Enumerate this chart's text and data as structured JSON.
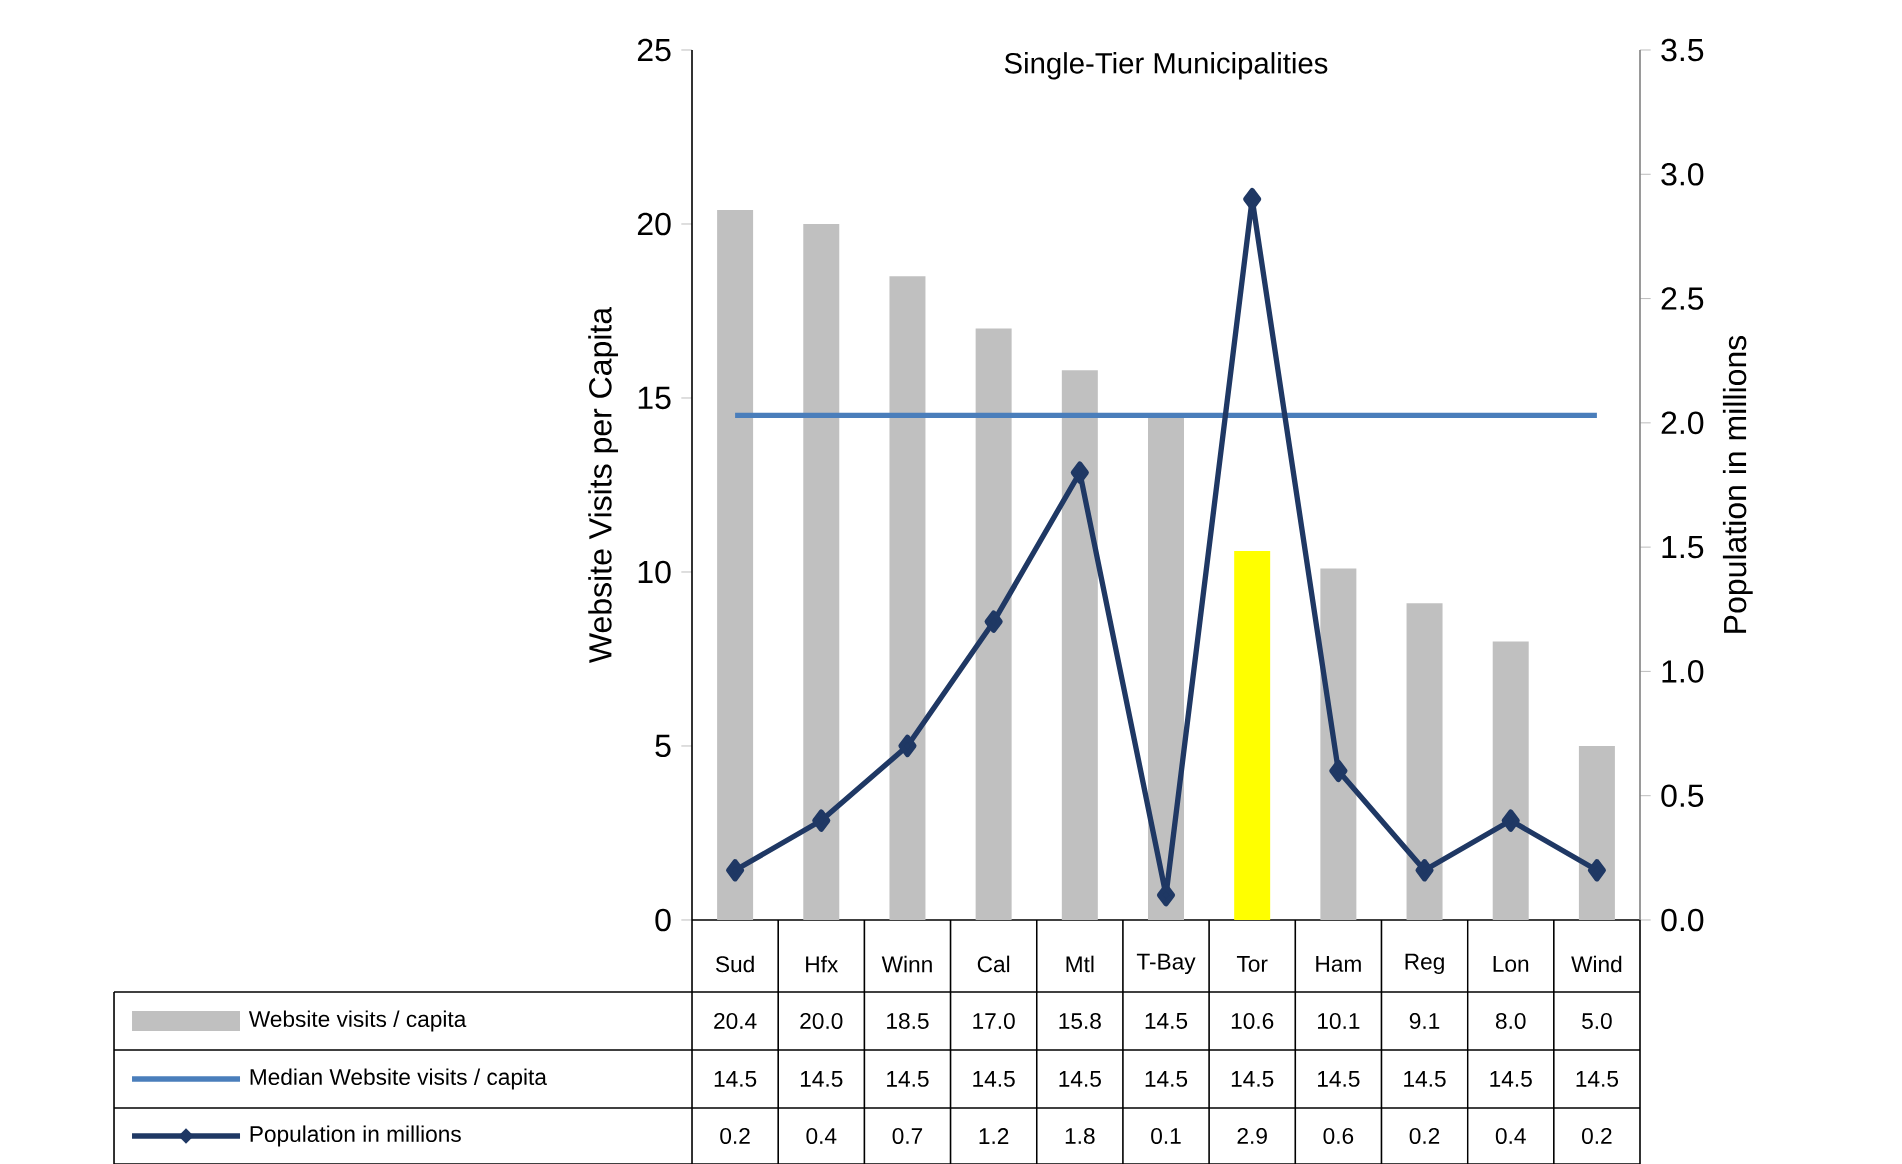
{
  "chart_data": {
    "type": "bar",
    "title": "Single-Tier Municipalities",
    "ylabel": "Website Visits per Capita",
    "y2label": "Population in millions",
    "categories": [
      "Sud",
      "Hfx",
      "Winn",
      "Cal",
      "Mtl",
      "T-Bay",
      "Tor",
      "Ham",
      "Reg",
      "Lon",
      "Wind"
    ],
    "ylim": [
      0,
      25
    ],
    "yticks": [
      0,
      5,
      10,
      15,
      20,
      25
    ],
    "y2lim": [
      0,
      3.5
    ],
    "y2ticks": [
      {
        "value": 0,
        "label": "0.0"
      },
      {
        "value": 0.5,
        "label": "0.5"
      },
      {
        "value": 1,
        "label": "1.0"
      },
      {
        "value": 1.5,
        "label": "1.5"
      },
      {
        "value": 2,
        "label": "2.0"
      },
      {
        "value": 2.5,
        "label": "2.5"
      },
      {
        "value": 3,
        "label": "3.0"
      },
      {
        "value": 3.5,
        "label": "3.5"
      }
    ],
    "legend": "bottom",
    "series": [
      {
        "name": "Website visits / capita",
        "colors": [
          "#c0c0c0",
          "#c0c0c0",
          "#c0c0c0",
          "#c0c0c0",
          "#c0c0c0",
          "#c0c0c0",
          "#ffff00",
          "#c0c0c0",
          "#c0c0c0",
          "#c0c0c0",
          "#c0c0c0"
        ],
        "values": [
          20.4,
          20.0,
          18.5,
          17.0,
          15.8,
          14.5,
          10.6,
          10.1,
          9.1,
          8.0,
          5.0
        ],
        "value_labels": [
          "20.4",
          "20.0",
          "18.5",
          "17.0",
          "15.8",
          "14.5",
          "10.6",
          "10.1",
          "9.1",
          "8.0",
          "5.0"
        ]
      },
      {
        "name": "Median Website visits / capita",
        "type": "line",
        "color": "#4a7ebb",
        "marker": "none",
        "line_style": "solid",
        "values": [
          14.5,
          14.5,
          14.5,
          14.5,
          14.5,
          14.5,
          14.5,
          14.5,
          14.5,
          14.5,
          14.5
        ],
        "value_labels": [
          "14.5",
          "14.5",
          "14.5",
          "14.5",
          "14.5",
          "14.5",
          "14.5",
          "14.5",
          "14.5",
          "14.5",
          "14.5"
        ]
      },
      {
        "name": "Population in millions",
        "type": "line",
        "axis": "y2",
        "color": "#1f3864",
        "marker": "diamond",
        "line_style": "solid",
        "values": [
          0.2,
          0.4,
          0.7,
          1.2,
          1.8,
          0.1,
          2.9,
          0.6,
          0.2,
          0.4,
          0.2
        ],
        "value_labels": [
          "0.2",
          "0.4",
          "0.7",
          "1.2",
          "1.8",
          "0.1",
          "2.9",
          "0.6",
          "0.2",
          "0.4",
          "0.2"
        ]
      }
    ]
  }
}
